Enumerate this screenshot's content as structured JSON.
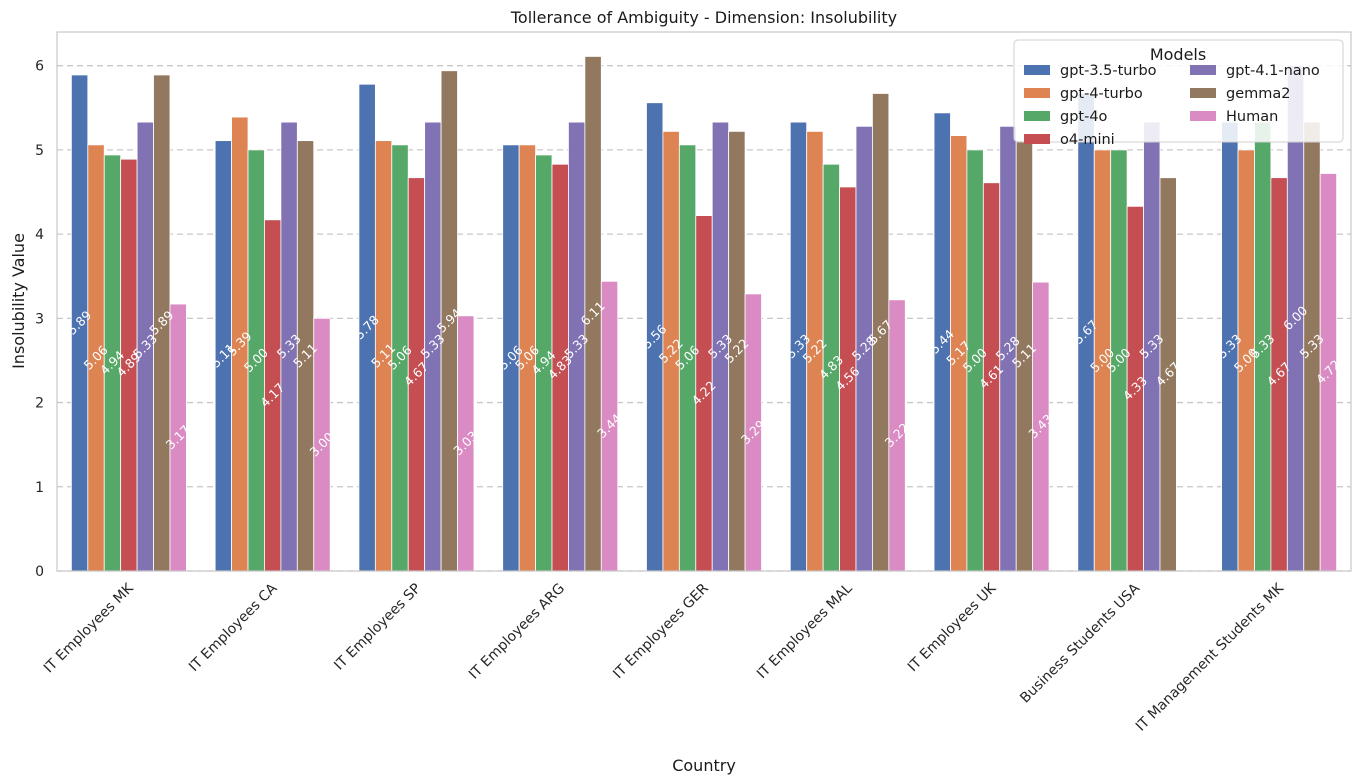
{
  "chart_data": {
    "type": "bar",
    "title": "Tollerance of Ambiguity - Dimension: Insolubility",
    "xlabel": "Country",
    "ylabel": "Insolubility Value",
    "ylim": [
      0,
      6.4
    ],
    "yticks": [
      0,
      1,
      2,
      3,
      4,
      5,
      6
    ],
    "grid": true,
    "legend": {
      "title": "Models",
      "placement": "top-right",
      "columns": 2
    },
    "categories": [
      "IT Employees MK",
      "IT Employees CA",
      "IT Employees SP",
      "IT Employees ARG",
      "IT Employees GER",
      "IT Employees MAL",
      "IT Employees UK",
      "Business Students USA",
      "IT Management Students MK"
    ],
    "series": [
      {
        "name": "gpt-3.5-turbo",
        "color": "#4c72b0",
        "values": [
          5.89,
          5.11,
          5.78,
          5.06,
          5.56,
          5.33,
          5.44,
          5.67,
          5.33
        ]
      },
      {
        "name": "gpt-4-turbo",
        "color": "#dd8452",
        "values": [
          5.06,
          5.39,
          5.11,
          5.06,
          5.22,
          5.22,
          5.17,
          5.0,
          5.0
        ]
      },
      {
        "name": "gpt-4o",
        "color": "#55a868",
        "values": [
          4.94,
          5.0,
          5.06,
          4.94,
          5.06,
          4.83,
          5.0,
          5.0,
          5.33
        ]
      },
      {
        "name": "o4-mini",
        "color": "#c44e52",
        "values": [
          4.89,
          4.17,
          4.67,
          4.83,
          4.22,
          4.56,
          4.61,
          4.33,
          4.67
        ]
      },
      {
        "name": "gpt-4.1-nano",
        "color": "#8172b3",
        "values": [
          5.33,
          5.33,
          5.33,
          5.33,
          5.33,
          5.28,
          5.28,
          5.33,
          6.0
        ]
      },
      {
        "name": "gemma2",
        "color": "#937860",
        "values": [
          5.89,
          5.11,
          5.94,
          6.11,
          5.22,
          5.67,
          5.11,
          4.67,
          5.33
        ]
      },
      {
        "name": "Human",
        "color": "#da8bc3",
        "values": [
          3.17,
          3.0,
          3.03,
          3.44,
          3.29,
          3.22,
          3.43,
          0,
          4.72
        ]
      }
    ],
    "value_labels": [
      [
        "5.89",
        "5.06",
        "4.94",
        "4.89",
        "5.33",
        "5.89",
        "3.17"
      ],
      [
        "5.11",
        "5.39",
        "5.00",
        "4.17",
        "5.33",
        "5.11",
        "3.00"
      ],
      [
        "5.78",
        "5.11",
        "5.06",
        "4.67",
        "5.33",
        "5.94",
        "3.03"
      ],
      [
        "5.06",
        "5.06",
        "4.94",
        "4.83",
        "5.33",
        "6.11",
        "3.44"
      ],
      [
        "5.56",
        "5.22",
        "5.06",
        "4.22",
        "5.33",
        "5.22",
        "3.29"
      ],
      [
        "5.33",
        "5.22",
        "4.83",
        "4.56",
        "5.28",
        "5.67",
        "3.22"
      ],
      [
        "5.44",
        "5.17",
        "5.00",
        "4.61",
        "5.28",
        "5.11",
        "3.43"
      ],
      [
        "5.67",
        "5.00",
        "5.00",
        "4.33",
        "5.33",
        "4.67",
        ""
      ],
      [
        "5.33",
        "5.00",
        "5.33",
        "4.67",
        "6.00",
        "5.33",
        "4.72"
      ]
    ]
  }
}
